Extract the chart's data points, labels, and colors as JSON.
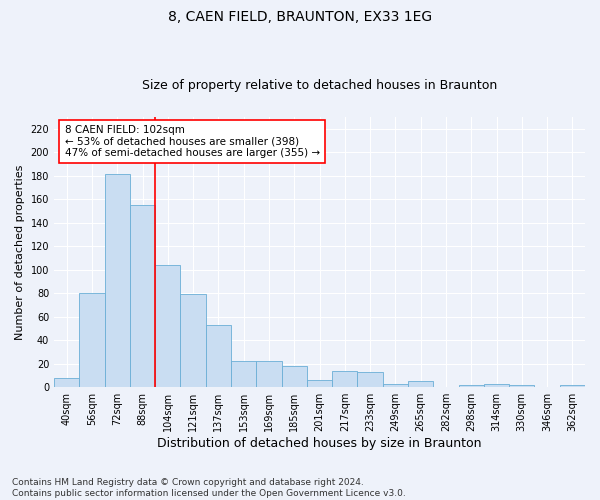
{
  "title": "8, CAEN FIELD, BRAUNTON, EX33 1EG",
  "subtitle": "Size of property relative to detached houses in Braunton",
  "xlabel": "Distribution of detached houses by size in Braunton",
  "ylabel": "Number of detached properties",
  "categories": [
    "40sqm",
    "56sqm",
    "72sqm",
    "88sqm",
    "104sqm",
    "121sqm",
    "137sqm",
    "153sqm",
    "169sqm",
    "185sqm",
    "201sqm",
    "217sqm",
    "233sqm",
    "249sqm",
    "265sqm",
    "282sqm",
    "298sqm",
    "314sqm",
    "330sqm",
    "346sqm",
    "362sqm"
  ],
  "values": [
    8,
    80,
    181,
    155,
    104,
    79,
    53,
    22,
    22,
    18,
    6,
    14,
    13,
    3,
    5,
    0,
    2,
    3,
    2,
    0,
    2
  ],
  "bar_color": "#c9ddf2",
  "bar_edge_color": "#6aaed6",
  "vline_x": 3.5,
  "annotation_text": "8 CAEN FIELD: 102sqm\n← 53% of detached houses are smaller (398)\n47% of semi-detached houses are larger (355) →",
  "annotation_box_color": "white",
  "annotation_box_edge_color": "red",
  "vline_color": "red",
  "ylim": [
    0,
    230
  ],
  "yticks": [
    0,
    20,
    40,
    60,
    80,
    100,
    120,
    140,
    160,
    180,
    200,
    220
  ],
  "footnote": "Contains HM Land Registry data © Crown copyright and database right 2024.\nContains public sector information licensed under the Open Government Licence v3.0.",
  "title_fontsize": 10,
  "subtitle_fontsize": 9,
  "xlabel_fontsize": 9,
  "ylabel_fontsize": 8,
  "tick_fontsize": 7,
  "annotation_fontsize": 7.5,
  "footnote_fontsize": 6.5,
  "bg_color": "#eef2fa",
  "grid_color": "white"
}
